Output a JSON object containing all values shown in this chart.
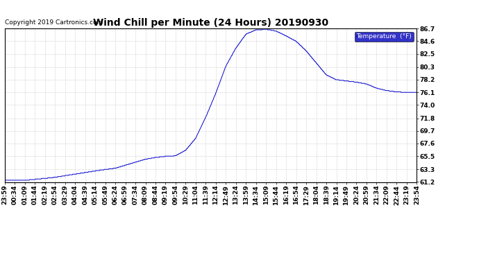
{
  "title": "Wind Chill per Minute (24 Hours) 20190930",
  "copyright_text": "Copyright 2019 Cartronics.com",
  "legend_label": "Temperature  (°F)",
  "line_color": "#0000cc",
  "legend_bg": "#0000bb",
  "legend_text_color": "#ffffff",
  "background_color": "#ffffff",
  "grid_color": "#cccccc",
  "ylim_min": 61.2,
  "ylim_max": 86.7,
  "yticks": [
    61.2,
    63.3,
    65.5,
    67.6,
    69.7,
    71.8,
    74.0,
    76.1,
    78.2,
    80.3,
    82.5,
    84.6,
    86.7
  ],
  "xtick_labels": [
    "23:59",
    "00:34",
    "01:09",
    "01:44",
    "02:19",
    "02:54",
    "03:29",
    "04:04",
    "04:39",
    "05:14",
    "05:49",
    "06:24",
    "06:59",
    "07:34",
    "08:09",
    "08:44",
    "09:19",
    "09:54",
    "10:29",
    "11:04",
    "11:39",
    "12:14",
    "12:49",
    "13:24",
    "13:59",
    "14:34",
    "15:09",
    "15:44",
    "16:19",
    "16:54",
    "17:29",
    "18:04",
    "18:39",
    "19:14",
    "19:49",
    "20:24",
    "20:59",
    "21:34",
    "22:09",
    "22:44",
    "23:19",
    "23:54"
  ],
  "title_fontsize": 10,
  "axis_fontsize": 6.5,
  "copyright_fontsize": 6.5,
  "curve_key_points_x": [
    0,
    2,
    5,
    8,
    10,
    11,
    12,
    13,
    14,
    15,
    16,
    17,
    18,
    19,
    20,
    21,
    22,
    23,
    24,
    25,
    26,
    27,
    28,
    29,
    30,
    31,
    32,
    33,
    34,
    35,
    36,
    37,
    38,
    39,
    40,
    41
  ],
  "curve_key_points_y": [
    61.5,
    61.5,
    62.0,
    62.8,
    63.3,
    63.5,
    64.0,
    64.5,
    65.0,
    65.3,
    65.5,
    65.6,
    66.5,
    68.5,
    72.0,
    76.0,
    80.5,
    83.5,
    85.8,
    86.5,
    86.6,
    86.3,
    85.5,
    84.6,
    83.0,
    81.0,
    79.0,
    78.2,
    78.0,
    77.8,
    77.5,
    76.8,
    76.4,
    76.2,
    76.1,
    76.1
  ]
}
